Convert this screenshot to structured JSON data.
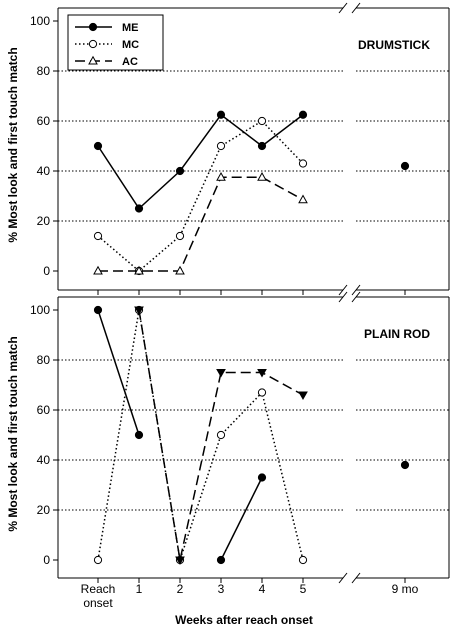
{
  "chart_data": {
    "type": "line",
    "xlabel": "Weeks after reach onset",
    "ylabel": "% Most look and first touch match",
    "ylim": [
      0,
      100
    ],
    "yticks": [
      "0",
      "20",
      "40",
      "60",
      "80",
      "100"
    ],
    "x_tick_labels": [
      {
        "line1": "Reach",
        "line2": "onset"
      },
      {
        "line1": "1",
        "line2": ""
      },
      {
        "line1": "2",
        "line2": ""
      },
      {
        "line1": "3",
        "line2": ""
      },
      {
        "line1": "4",
        "line2": ""
      },
      {
        "line1": "5",
        "line2": ""
      },
      {
        "line1": "9 mo",
        "line2": ""
      }
    ],
    "grid": "horizontal dotted",
    "legend_position": "top-left",
    "legend": [
      {
        "name": "ME",
        "marker": "filled-circle",
        "line": "solid"
      },
      {
        "name": "MC",
        "marker": "open-circle",
        "line": "dotted"
      },
      {
        "name": "AC",
        "marker": "open-triangle",
        "line": "dashed"
      }
    ],
    "panels": [
      {
        "label": "DRUMSTICK",
        "series": [
          {
            "name": "ME",
            "values": [
              50,
              25,
              40,
              62.5,
              50,
              62.5
            ],
            "nine_mo": 42
          },
          {
            "name": "MC",
            "values": [
              14,
              0,
              14,
              50,
              60,
              43
            ]
          },
          {
            "name": "AC",
            "values": [
              0,
              0,
              0,
              37.5,
              37.5,
              28.5
            ]
          }
        ]
      },
      {
        "label": "PLAIN ROD",
        "series": [
          {
            "name": "ME",
            "segments": [
              [
                [
                  0,
                  100
                ],
                [
                  1,
                  50
                ]
              ],
              [
                [
                  3,
                  0
                ],
                [
                  4,
                  33
                ]
              ]
            ],
            "nine_mo": 38
          },
          {
            "name": "MC",
            "values": [
              0,
              100,
              0,
              50,
              67,
              0
            ]
          },
          {
            "name": "AC",
            "values": [
              null,
              100,
              0,
              75,
              75,
              66
            ]
          }
        ]
      }
    ]
  }
}
